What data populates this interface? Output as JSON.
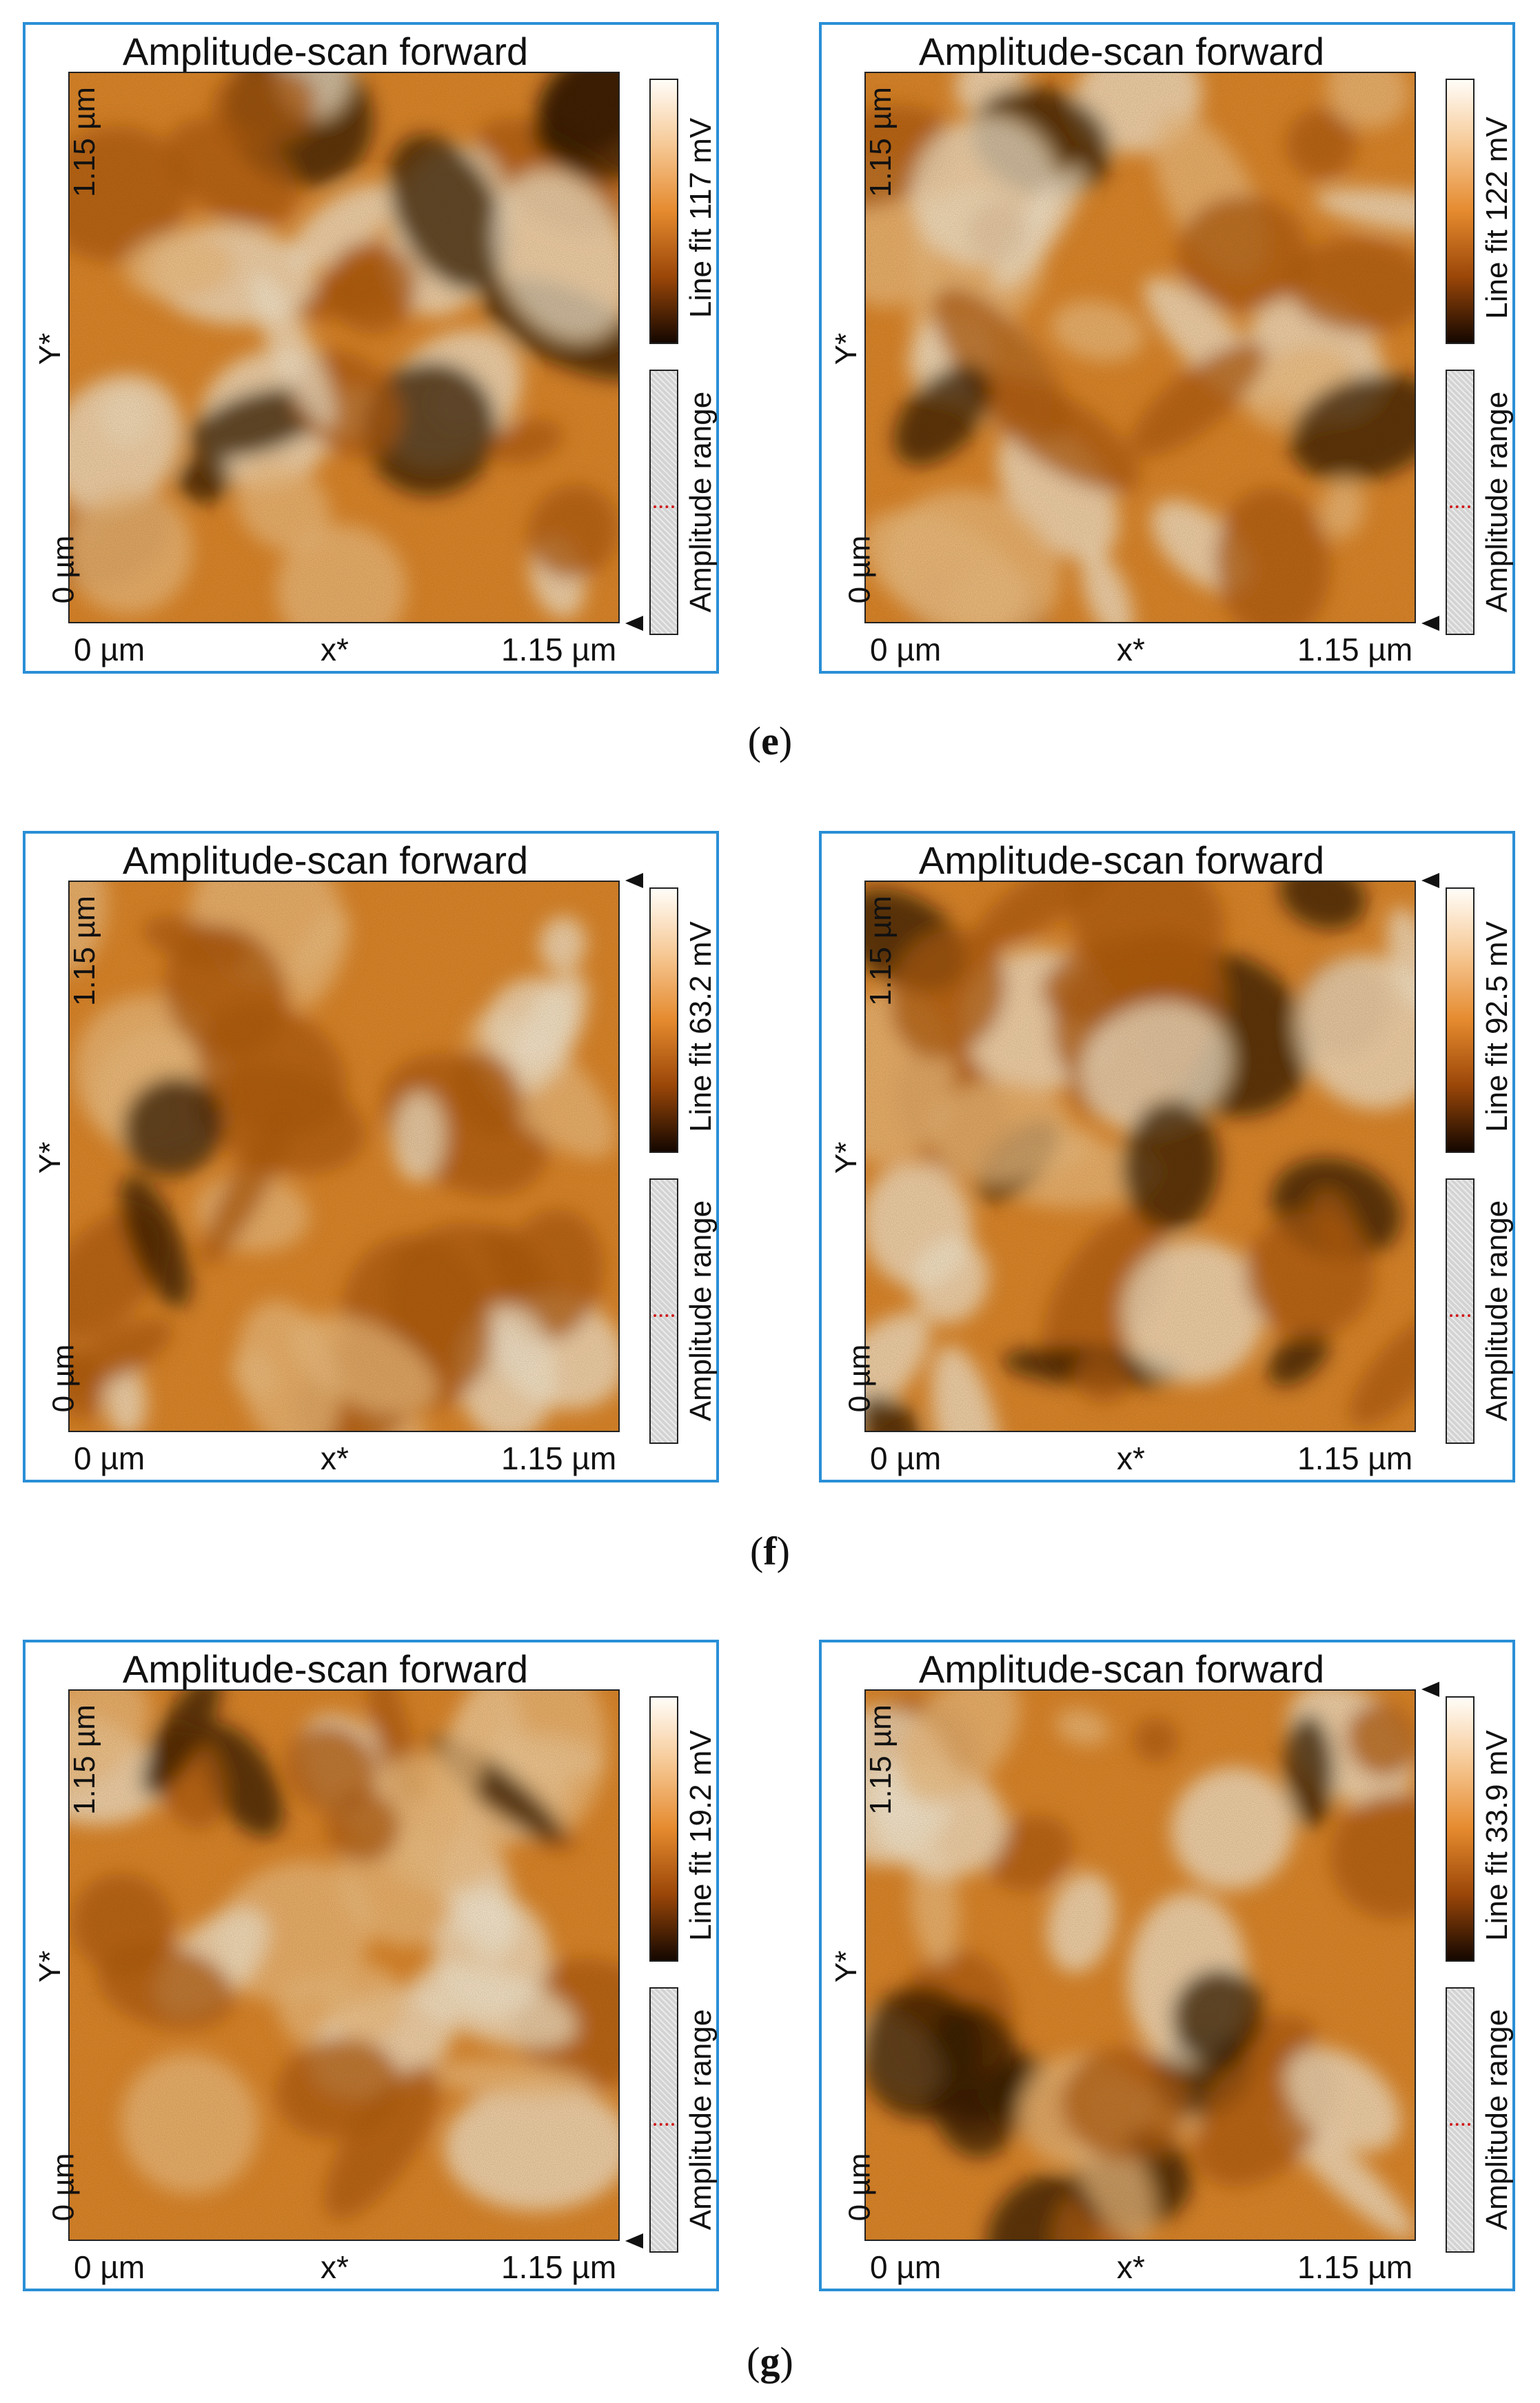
{
  "figure": {
    "panels": [
      {
        "id": "e-left",
        "title": "Amplitude-scan forward",
        "colorbar_label": "Line fit 117 mV",
        "range_label": "Amplitude range",
        "y_top": "1.15 µm",
        "y_mid": "Y*",
        "y_bottom": "0 µm",
        "x_left": "0 µm",
        "x_mid": "x*",
        "x_right": "1.15 µm",
        "tone": 0.45
      },
      {
        "id": "e-right",
        "title": "Amplitude-scan forward",
        "colorbar_label": "Line fit 122 mV",
        "range_label": "Amplitude range",
        "y_top": "1.15 µm",
        "y_mid": "Y*",
        "y_bottom": "0 µm",
        "x_left": "0 µm",
        "x_mid": "x*",
        "x_right": "1.15 µm",
        "tone": 0.55
      },
      {
        "id": "f-left",
        "title": "Amplitude-scan forward",
        "colorbar_label": "Line fit 63.2 mV",
        "range_label": "Amplitude range",
        "y_top": "1.15 µm",
        "y_mid": "Y*",
        "y_bottom": "0 µm",
        "x_left": "0 µm",
        "x_mid": "x*",
        "x_right": "1.15 µm",
        "tone": 0.5
      },
      {
        "id": "f-right",
        "title": "Amplitude-scan forward",
        "colorbar_label": "Line fit 92.5 mV",
        "range_label": "Amplitude range",
        "y_top": "1.15 µm",
        "y_mid": "Y*",
        "y_bottom": "0 µm",
        "x_left": "0 µm",
        "x_mid": "x*",
        "x_right": "1.15 µm",
        "tone": 0.5
      },
      {
        "id": "g-left",
        "title": "Amplitude-scan forward",
        "colorbar_label": "Line fit 19.2 mV",
        "range_label": "Amplitude range",
        "y_top": "1.15 µm",
        "y_mid": "Y*",
        "y_bottom": "0 µm",
        "x_left": "0 µm",
        "x_mid": "x*",
        "x_right": "1.15 µm",
        "tone": 0.6
      },
      {
        "id": "g-right",
        "title": "Amplitude-scan forward",
        "colorbar_label": "Line fit 33.9 mV",
        "range_label": "Amplitude range",
        "y_top": "1.15 µm",
        "y_mid": "Y*",
        "y_bottom": "0 µm",
        "x_left": "0 µm",
        "x_mid": "x*",
        "x_right": "1.15 µm",
        "tone": 0.55
      }
    ],
    "captions": {
      "e": "e",
      "f": "f",
      "g": "g"
    },
    "colors": {
      "frame": "#2a8fd6",
      "afm_dark": "#2a1200",
      "afm_mid": "#e4892e",
      "afm_light": "#fff4e6"
    }
  }
}
